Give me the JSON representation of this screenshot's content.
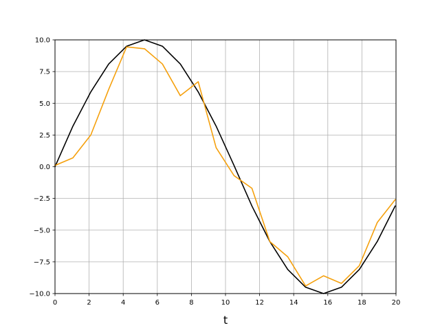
{
  "chart_data": {
    "type": "line",
    "title": "",
    "xlabel": "t",
    "ylabel": "",
    "xlim": [
      0,
      20
    ],
    "ylim": [
      -10,
      10
    ],
    "x_ticks": [
      0,
      2,
      4,
      6,
      8,
      10,
      12,
      14,
      16,
      18,
      20
    ],
    "x_tick_labels": [
      "0",
      "2",
      "4",
      "6",
      "8",
      "10",
      "12",
      "14",
      "16",
      "18",
      "20"
    ],
    "y_ticks": [
      10,
      7.5,
      5,
      2.5,
      0,
      -2.5,
      -5,
      -7.5,
      -10
    ],
    "y_tick_labels": [
      "10.0",
      "7.5",
      "5.0",
      "2.5",
      "0.0",
      "−2.5",
      "−5.0",
      "−7.5",
      "−10.0"
    ],
    "grid": true,
    "legend": null,
    "x": [
      0,
      1.05,
      2.1,
      3.15,
      4.2,
      5.25,
      6.3,
      7.35,
      8.4,
      9.45,
      10.5,
      11.55,
      12.6,
      13.65,
      14.7,
      15.75,
      16.8,
      17.85,
      18.9,
      19.95
    ],
    "series": [
      {
        "color": "#000000",
        "values": [
          0,
          3.2,
          5.9,
          8.1,
          9.5,
          10.0,
          9.5,
          8.1,
          5.9,
          3.2,
          0.1,
          -3.1,
          -5.9,
          -8.1,
          -9.5,
          -10.0,
          -9.5,
          -8.1,
          -5.9,
          -3.1
        ]
      },
      {
        "color": "#f5a00c",
        "values": [
          0.1,
          0.7,
          2.5,
          6.1,
          9.45,
          9.3,
          8.1,
          5.6,
          6.7,
          1.5,
          -0.7,
          -1.7,
          -5.9,
          -7.1,
          -9.4,
          -8.6,
          -9.2,
          -7.8,
          -4.4,
          -2.6
        ]
      }
    ]
  }
}
